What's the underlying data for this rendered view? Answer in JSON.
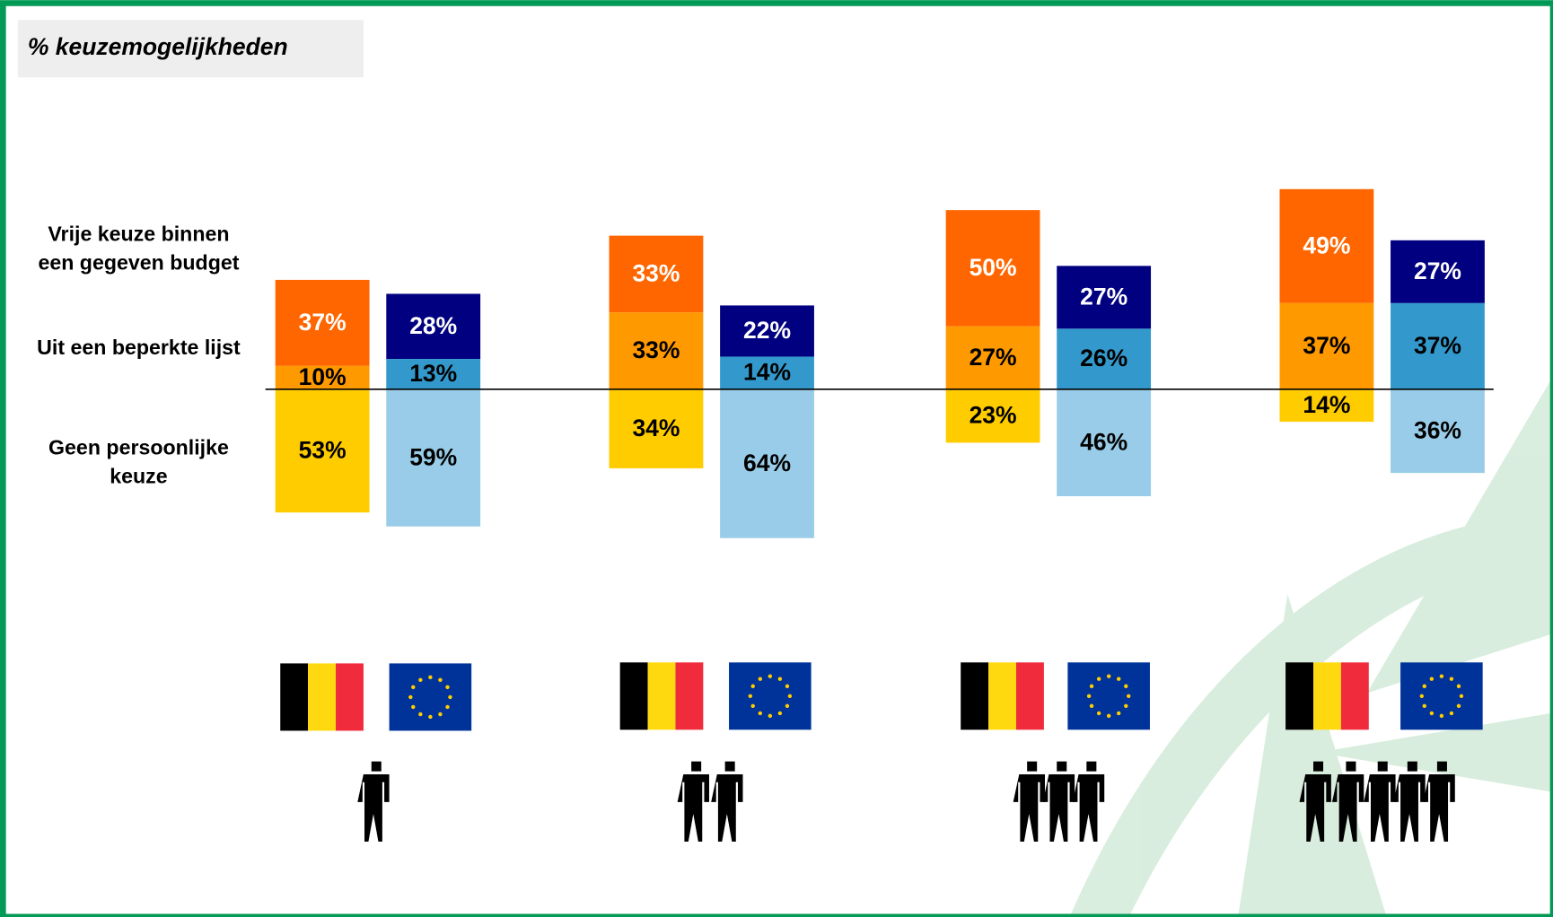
{
  "chart_data": {
    "type": "diverging-bar",
    "title": "% keuzemogelijkheden",
    "categories": [
      null,
      null,
      null,
      null
    ],
    "series": [
      {
        "name": "Vrije keuze binnen een gegeven budget",
        "colors": [
          "#ff6600",
          "#000080"
        ],
        "values": [
          [
            37,
            28
          ],
          [
            33,
            22
          ],
          [
            50,
            27
          ],
          [
            49,
            27
          ]
        ],
        "value_labels": [
          [
            "37%",
            "28%"
          ],
          [
            "33%",
            "22%"
          ],
          [
            "50%",
            "27%"
          ],
          [
            "49%",
            "27%"
          ]
        ]
      },
      {
        "name": "Uit een beperkte lijst",
        "colors": [
          "#ff9900",
          "#3399cc"
        ],
        "values": [
          [
            10,
            13
          ],
          [
            33,
            14
          ],
          [
            27,
            26
          ],
          [
            37,
            37
          ]
        ],
        "value_labels": [
          [
            "10%",
            "13%"
          ],
          [
            "33%",
            "14%"
          ],
          [
            "27%",
            "26%"
          ],
          [
            "37%",
            "37%"
          ]
        ]
      },
      {
        "name": "Geen persoonlijke keuze",
        "colors": [
          "#ffcc00",
          "#99cce8"
        ],
        "values": [
          [
            53,
            59
          ],
          [
            34,
            64
          ],
          [
            23,
            46
          ],
          [
            14,
            36
          ]
        ],
        "value_labels": [
          [
            "53%",
            "59%"
          ],
          [
            "34%",
            "64%"
          ],
          [
            "23%",
            "46%"
          ],
          [
            "14%",
            "36%"
          ]
        ]
      }
    ]
  }
}
